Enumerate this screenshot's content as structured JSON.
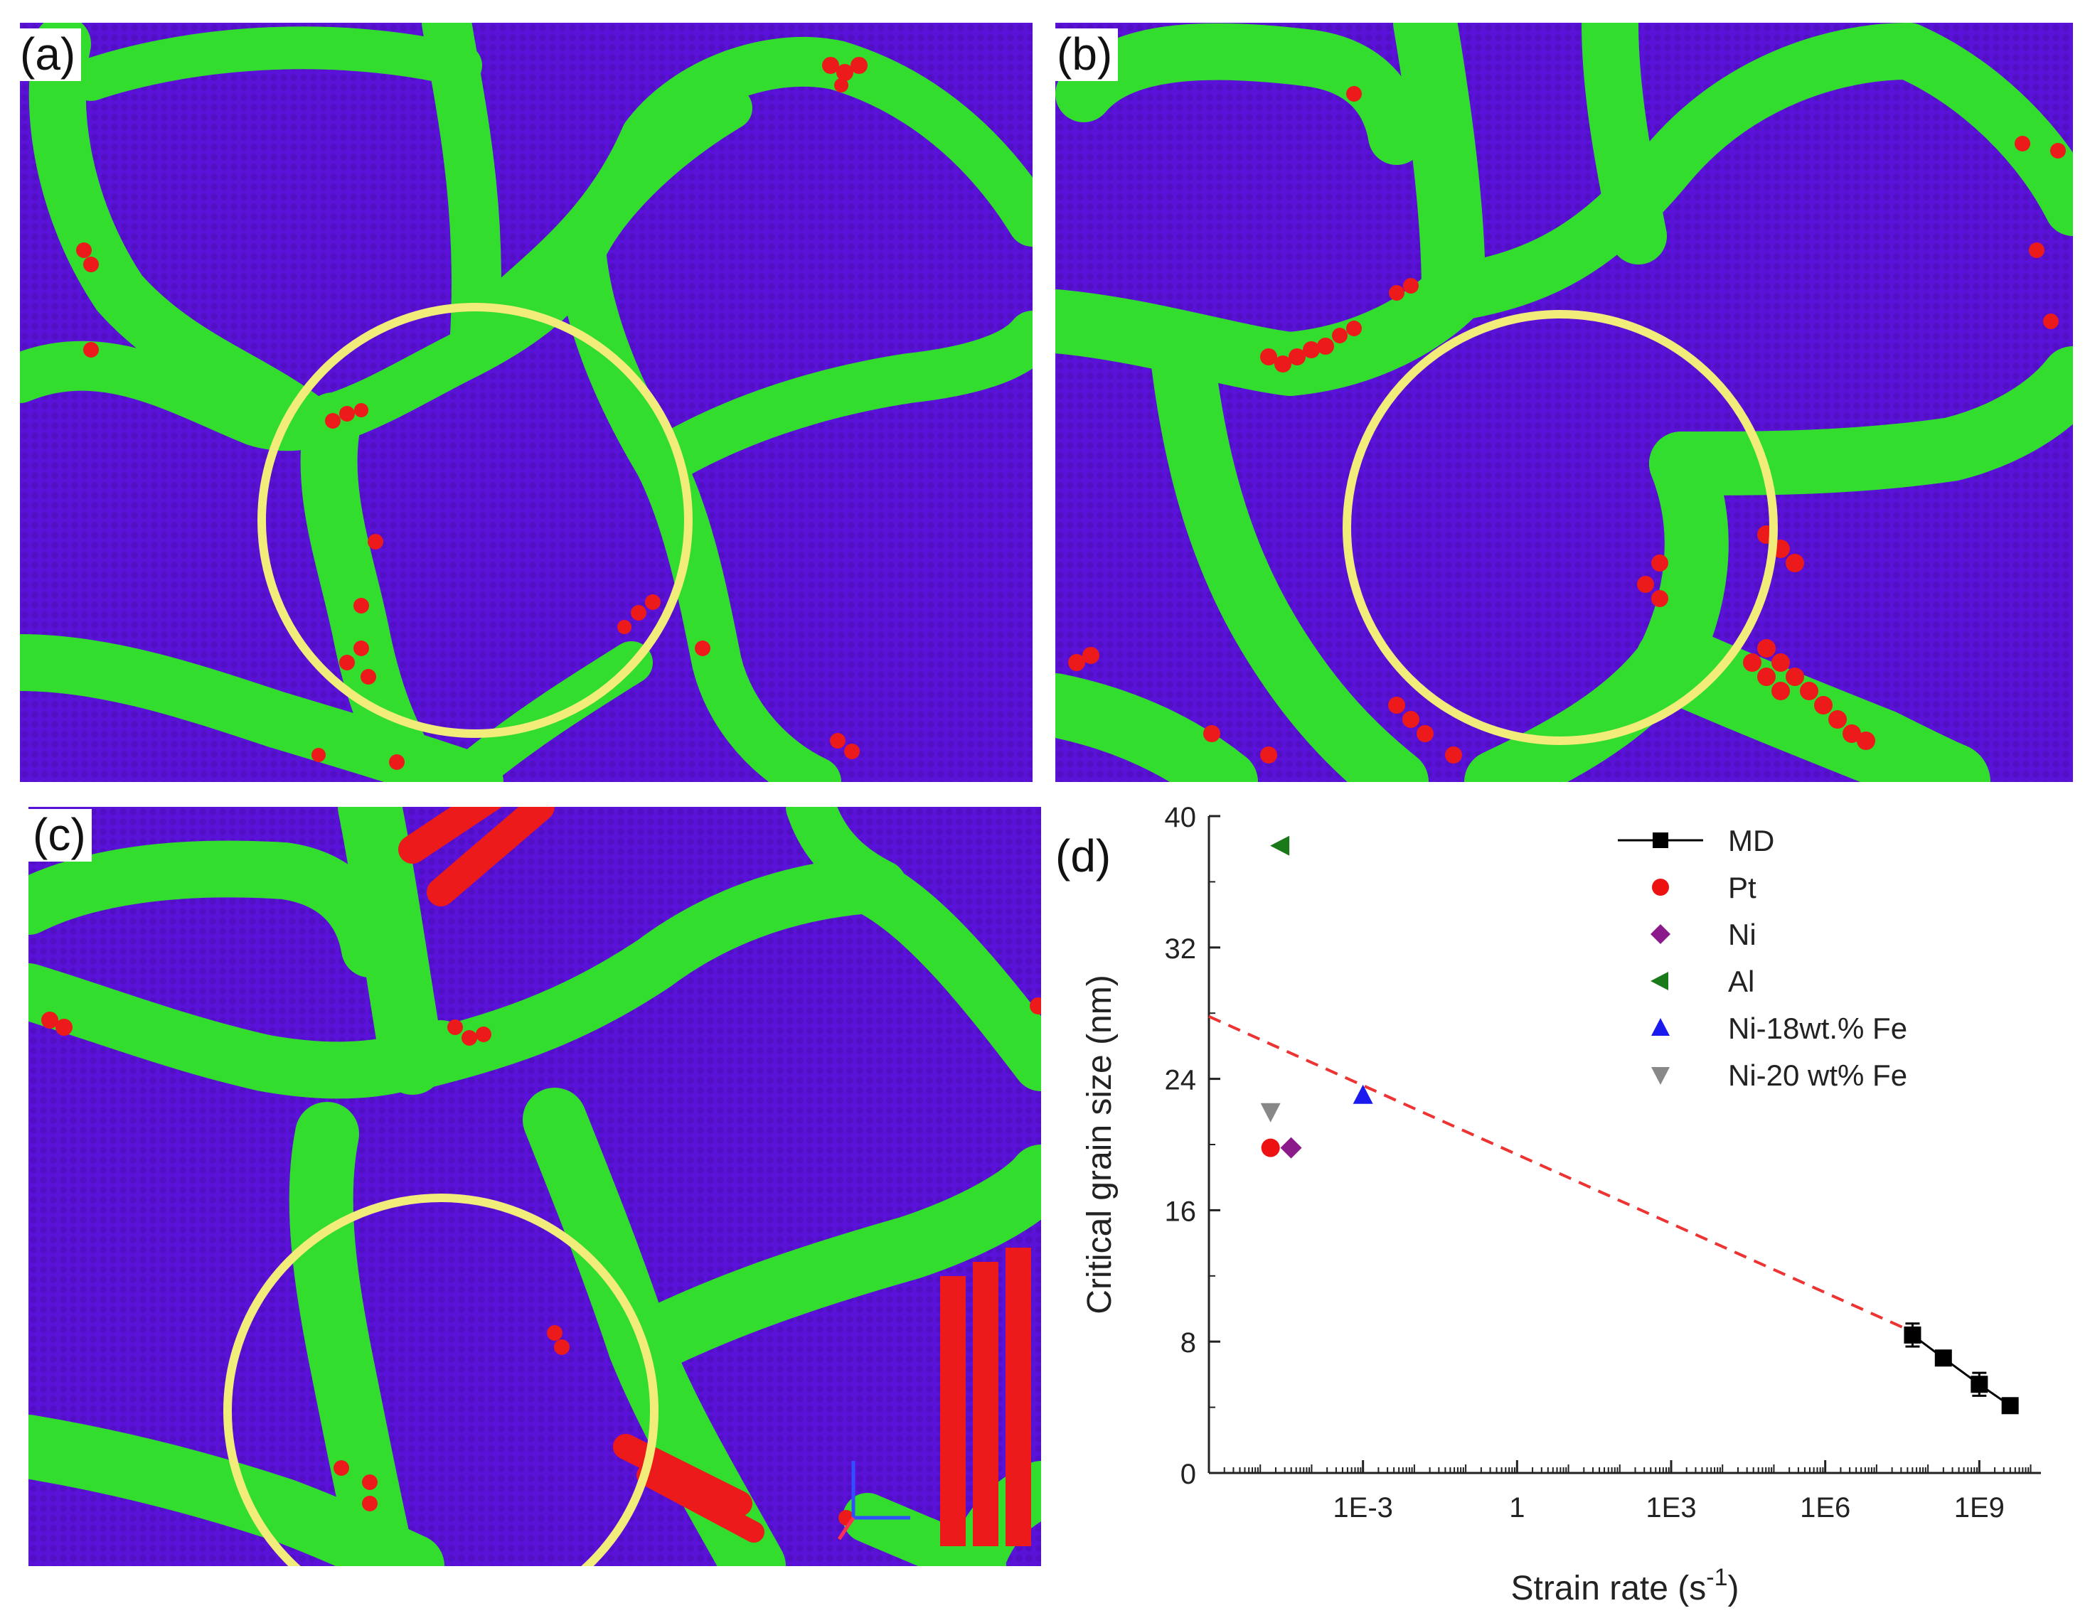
{
  "colors": {
    "grain": "#5b12d8",
    "boundary": "#33dd2e",
    "fault": "#ec1a1a",
    "circle": "#f2ec7a",
    "md_line": "#000000",
    "fit_line": "#ee3333"
  },
  "panels": {
    "a": {
      "label": "(a)"
    },
    "b": {
      "label": "(b)"
    },
    "c": {
      "label": "(c)"
    },
    "d": {
      "label": "(d)"
    }
  },
  "chart_data": {
    "type": "scatter",
    "xscale": "log10",
    "xlim_log10": [
      -6,
      10.2
    ],
    "ylim": [
      0,
      40
    ],
    "xlabel": "Strain rate (s",
    "xlabel_sup": "-1",
    "xlabel_end": ")",
    "ylabel": "Critical grain size (nm)",
    "x_ticks": [
      {
        "log10": -3,
        "label": "1E-3"
      },
      {
        "log10": 0,
        "label": "1"
      },
      {
        "log10": 3,
        "label": "1E3"
      },
      {
        "log10": 6,
        "label": "1E6"
      },
      {
        "log10": 9,
        "label": "1E9"
      }
    ],
    "y_ticks": [
      {
        "value": 0,
        "label": "0"
      },
      {
        "value": 8,
        "label": "8"
      },
      {
        "value": 16,
        "label": "16"
      },
      {
        "value": 24,
        "label": "24"
      },
      {
        "value": 32,
        "label": "32"
      },
      {
        "value": 40,
        "label": "40"
      }
    ],
    "series": [
      {
        "name": "MD",
        "marker": "square",
        "color": "#000000",
        "line": true,
        "points": [
          {
            "log10": 7.7,
            "value": 8.4,
            "err": 0.7
          },
          {
            "log10": 8.3,
            "value": 7.0,
            "err": 0.3
          },
          {
            "log10": 9.0,
            "value": 5.4,
            "err": 0.7
          },
          {
            "log10": 9.6,
            "value": 4.1,
            "err": 0.4
          }
        ]
      },
      {
        "name": "Pt",
        "marker": "circle",
        "color": "#ee1111",
        "points": [
          {
            "log10": -4.8,
            "value": 19.8
          }
        ]
      },
      {
        "name": "Ni",
        "marker": "diamond",
        "color": "#8b1a8b",
        "points": [
          {
            "log10": -4.4,
            "value": 19.8
          }
        ]
      },
      {
        "name": "Al",
        "marker": "triangle-left",
        "color": "#1a7a1a",
        "points": [
          {
            "log10": -4.6,
            "value": 38.2
          }
        ]
      },
      {
        "name": "Ni-18wt.% Fe",
        "marker": "triangle-up",
        "color": "#1a1aee",
        "points": [
          {
            "log10": -3.0,
            "value": 23.0
          }
        ]
      },
      {
        "name": "Ni-20 wt% Fe",
        "marker": "triangle-down",
        "color": "#888888",
        "points": [
          {
            "log10": -4.8,
            "value": 22.0
          }
        ]
      }
    ],
    "fit_line": {
      "style": "dashed",
      "color": "#ee3333",
      "from": {
        "log10": -6.0,
        "value": 27.8
      },
      "to": {
        "log10": 7.7,
        "value": 8.6
      }
    }
  }
}
